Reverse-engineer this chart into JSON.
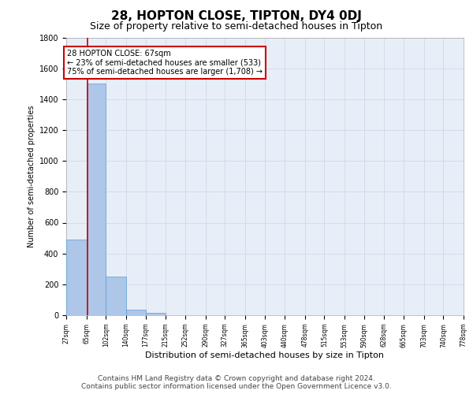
{
  "title": "28, HOPTON CLOSE, TIPTON, DY4 0DJ",
  "subtitle": "Size of property relative to semi-detached houses in Tipton",
  "xlabel": "Distribution of semi-detached houses by size in Tipton",
  "ylabel": "Number of semi-detached properties",
  "bin_labels": [
    "27sqm",
    "65sqm",
    "102sqm",
    "140sqm",
    "177sqm",
    "215sqm",
    "252sqm",
    "290sqm",
    "327sqm",
    "365sqm",
    "403sqm",
    "440sqm",
    "478sqm",
    "515sqm",
    "553sqm",
    "590sqm",
    "628sqm",
    "665sqm",
    "703sqm",
    "740sqm",
    "778sqm"
  ],
  "bar_values": [
    490,
    1500,
    250,
    35,
    15,
    0,
    0,
    0,
    0,
    0,
    0,
    0,
    0,
    0,
    0,
    0,
    0,
    0,
    0,
    0
  ],
  "bar_color": "#aec6e8",
  "bar_edge_color": "#5a9fd4",
  "property_line_x": 67,
  "bin_edges": [
    27,
    65,
    102,
    140,
    177,
    215,
    252,
    290,
    327,
    365,
    403,
    440,
    478,
    515,
    553,
    590,
    628,
    665,
    703,
    740,
    778
  ],
  "annotation_title": "28 HOPTON CLOSE: 67sqm",
  "annotation_line1": "← 23% of semi-detached houses are smaller (533)",
  "annotation_line2": "75% of semi-detached houses are larger (1,708) →",
  "annotation_box_color": "#ffffff",
  "annotation_box_edge": "#cc0000",
  "property_line_color": "#cc0000",
  "ylim": [
    0,
    1800
  ],
  "yticks": [
    0,
    200,
    400,
    600,
    800,
    1000,
    1200,
    1400,
    1600,
    1800
  ],
  "grid_color": "#d0d8e8",
  "background_color": "#e8eef8",
  "footer_line1": "Contains HM Land Registry data © Crown copyright and database right 2024.",
  "footer_line2": "Contains public sector information licensed under the Open Government Licence v3.0.",
  "title_fontsize": 11,
  "subtitle_fontsize": 9,
  "ylabel_fontsize": 7,
  "xlabel_fontsize": 8,
  "footer_fontsize": 6.5,
  "annotation_fontsize": 7,
  "ytick_fontsize": 7,
  "xtick_fontsize": 5.5
}
